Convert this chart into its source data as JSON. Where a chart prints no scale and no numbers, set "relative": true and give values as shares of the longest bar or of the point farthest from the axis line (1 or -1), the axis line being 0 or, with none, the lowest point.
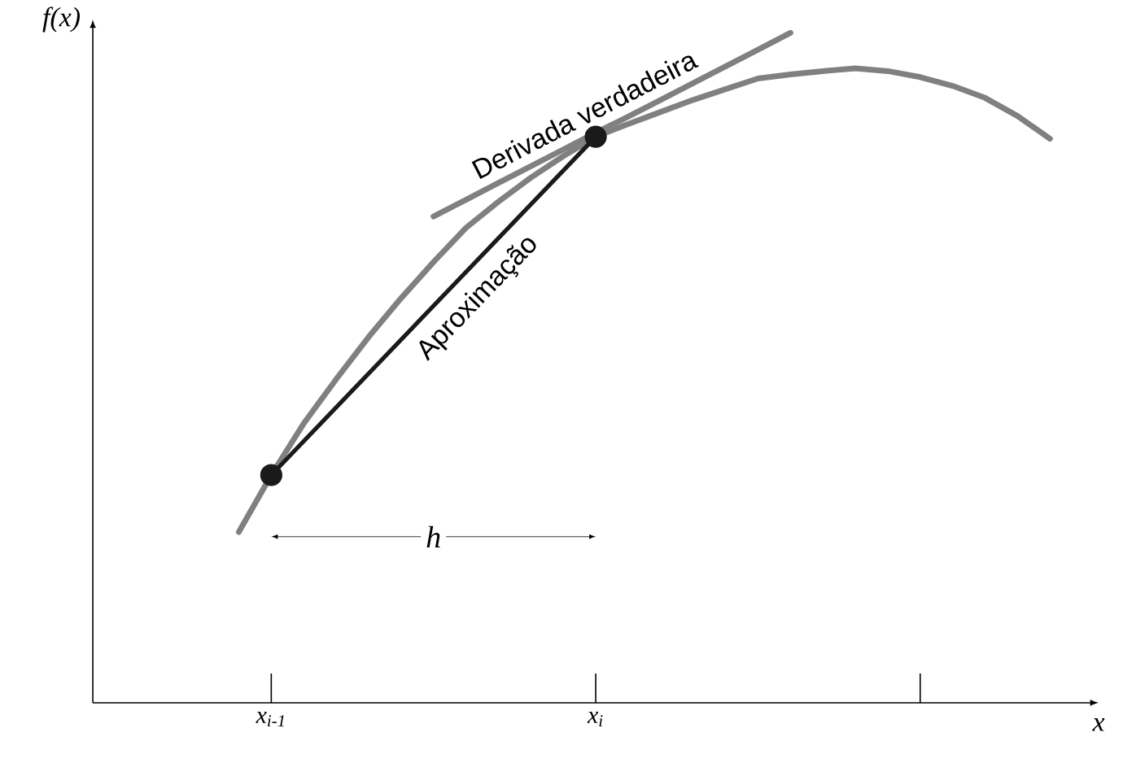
{
  "chart_data": {
    "type": "line",
    "relative": true,
    "xlabel": "x",
    "ylabel": "f(x)",
    "grid": false,
    "categories": [
      null,
      null,
      null,
      null,
      null,
      "x$_{i-1}$",
      null,
      null,
      null,
      null,
      null,
      null,
      null,
      null,
      null,
      "x$_{i}$",
      null,
      null,
      null,
      null,
      null,
      null,
      null,
      null,
      null,
      null,
      null,
      null,
      null,
      null,
      null
    ],
    "annotations": [
      "h"
    ],
    "series": [
      {
        "color": "#808080",
        "values": [
          null,
          null,
          null,
          null,
          0.255,
          0.34,
          0.417,
          0.483,
          0.546,
          0.604,
          0.658,
          0.709,
          0.748,
          0.784,
          0.816,
          0.845,
          0.864,
          0.882,
          0.9,
          0.916,
          0.932,
          0.938,
          0.943,
          0.947,
          0.943,
          0.934,
          0.921,
          0.903,
          0.876,
          0.842,
          null
        ],
        "marker": "none"
      },
      {
        "name": "Derivada verdadeira",
        "color": "#808080",
        "values": [
          null,
          null,
          null,
          null,
          null,
          null,
          null,
          null,
          null,
          null,
          0.726,
          0.751,
          0.776,
          0.801,
          0.826,
          0.851,
          0.875,
          0.9,
          0.925,
          0.95,
          0.975,
          1.0,
          null,
          null,
          null,
          null,
          null,
          null,
          null,
          null,
          null
        ],
        "marker": "none"
      },
      {
        "name": "Aproximação",
        "color": "#1a1a1a",
        "values": [
          null,
          null,
          null,
          null,
          null,
          0.34,
          null,
          null,
          null,
          null,
          null,
          null,
          null,
          null,
          null,
          0.845,
          null,
          null,
          null,
          null,
          null,
          null,
          null,
          null,
          null,
          null,
          null,
          null,
          null,
          null,
          null
        ],
        "marker": "circle"
      }
    ]
  }
}
